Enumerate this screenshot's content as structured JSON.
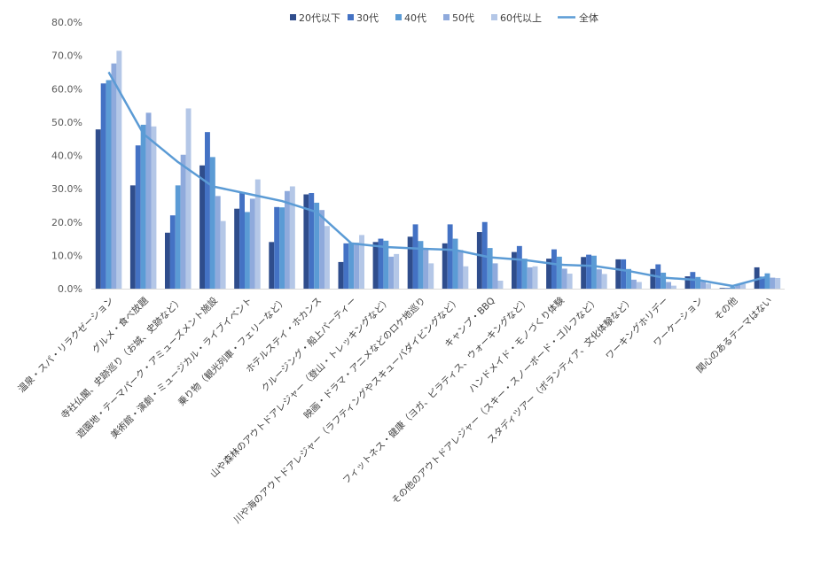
{
  "chart_data": {
    "type": "bar",
    "title": "",
    "xlabel": "",
    "ylabel": "",
    "ylim": [
      0,
      80
    ],
    "yticks": [
      "0.0%",
      "10.0%",
      "20.0%",
      "30.0%",
      "40.0%",
      "50.0%",
      "60.0%",
      "70.0%",
      "80.0%"
    ],
    "grid": false,
    "legend": "top",
    "categories": [
      "温泉・スパ・リラクゼーション",
      "グルメ・食べ放題",
      "寺社仏閣、史跡巡り（お城、史跡など）",
      "遊園地・テーマパーク・アミューズメント施設",
      "美術館・演劇・ミュージカル・ライブイベント",
      "乗り物（観光列車・フェリーなど）",
      "ホテルステイ・ホカンス",
      "クルージング・船上パーティー",
      "山や森林のアウトドアレジャー（登山・トレッキングなど）",
      "映画・ドラマ・アニメなどのロケ地巡り",
      "川や海のアウトドアレジャー（ラフティングやスキューバダイビングなど）",
      "キャンプ・BBQ",
      "フィットネス・健康（ヨガ、ピラティス、ウォーキングなど）",
      "ハンドメイド・モノづくり体験",
      "その他のアウトドアレジャー（スキー・スノーボード・ゴルフなど）",
      "スタディツアー（ボランティア、文化体験など）",
      "ワーキングホリデー",
      "ワーケーション",
      "その他",
      "関心のあるテーマはない"
    ],
    "series": [
      {
        "name": "20代以下",
        "kind": "bar",
        "color": "#2f4d8c",
        "values": [
          47.8,
          31.0,
          16.8,
          37.0,
          24.0,
          14.0,
          28.3,
          8.0,
          14.0,
          15.6,
          13.6,
          17.0,
          11.0,
          9.0,
          9.5,
          8.8,
          5.9,
          3.7,
          0.2,
          6.4
        ]
      },
      {
        "name": "30代",
        "kind": "bar",
        "color": "#4472c4",
        "values": [
          61.6,
          43.0,
          22.0,
          47.0,
          29.0,
          24.5,
          28.7,
          13.6,
          15.0,
          19.3,
          19.3,
          20.0,
          12.8,
          11.8,
          10.2,
          8.8,
          7.3,
          5.0,
          0.2,
          3.6
        ]
      },
      {
        "name": "40代",
        "kind": "bar",
        "color": "#5b9bd5",
        "values": [
          62.6,
          49.2,
          31.0,
          39.5,
          23.0,
          24.4,
          25.8,
          13.8,
          14.4,
          14.3,
          15.0,
          12.2,
          9.0,
          9.6,
          9.9,
          5.9,
          4.8,
          3.5,
          0.5,
          4.6
        ]
      },
      {
        "name": "50代",
        "kind": "bar",
        "color": "#8faadc",
        "values": [
          67.6,
          52.8,
          40.2,
          27.8,
          27.0,
          29.3,
          23.6,
          13.8,
          9.6,
          12.0,
          11.6,
          7.6,
          6.4,
          6.0,
          5.8,
          2.7,
          2.0,
          2.1,
          1.1,
          3.3
        ]
      },
      {
        "name": "60代以上",
        "kind": "bar",
        "color": "#b4c7e7",
        "values": [
          71.4,
          48.7,
          54.1,
          20.3,
          32.8,
          30.7,
          18.8,
          16.1,
          10.4,
          7.6,
          6.7,
          2.4,
          6.7,
          4.5,
          4.4,
          2.0,
          0.9,
          1.5,
          1.4,
          3.2
        ]
      },
      {
        "name": "全体",
        "kind": "line",
        "color": "#5b9bd5",
        "values": [
          65.0,
          46.5,
          38.0,
          30.7,
          28.5,
          26.3,
          23.0,
          13.6,
          12.5,
          12.0,
          11.6,
          9.4,
          8.6,
          7.2,
          6.8,
          5.3,
          3.3,
          2.6,
          0.8,
          3.6
        ]
      }
    ]
  }
}
